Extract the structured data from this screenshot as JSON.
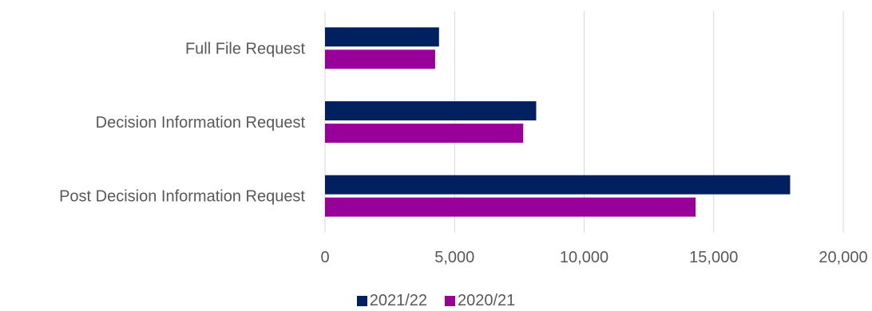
{
  "chart_data": {
    "type": "bar",
    "orientation": "horizontal",
    "categories": [
      "Full File Request",
      "Decision Information Request",
      "Post Decision Information Request"
    ],
    "series": [
      {
        "name": "2021/22",
        "color": "#002060",
        "values": [
          4400,
          8150,
          17950
        ]
      },
      {
        "name": "2020/21",
        "color": "#990099",
        "values": [
          4250,
          7650,
          14300
        ]
      }
    ],
    "x_ticks": [
      "0",
      "5,000",
      "10,000",
      "15,000",
      "20,000"
    ],
    "xlim": [
      0,
      20000
    ],
    "grid": true,
    "legend_position": "bottom"
  }
}
